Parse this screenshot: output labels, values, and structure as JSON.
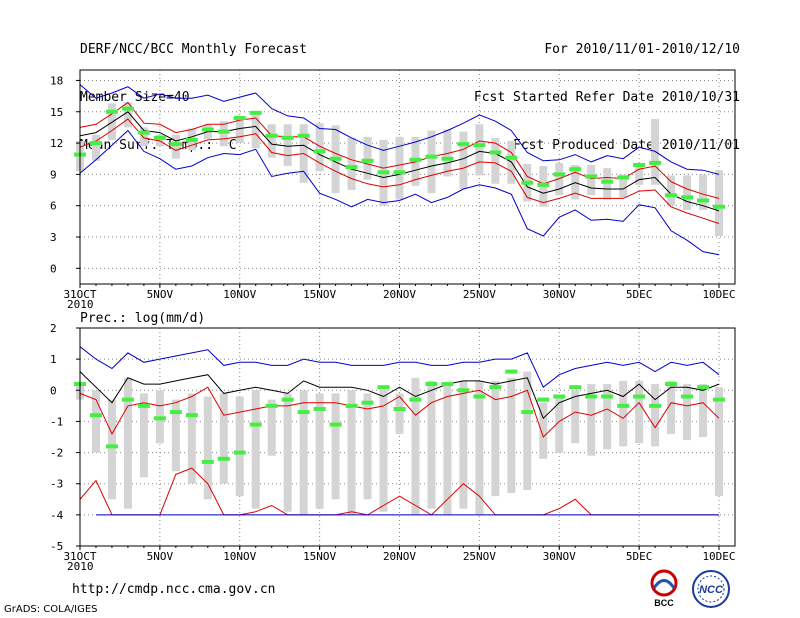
{
  "header": {
    "title": "DERF/NCC/BCC Monthly Forecast",
    "member_size": "Member Size=40",
    "variable1": "Mean Surf. Temp.: °C",
    "period": "For 2010/11/01-2010/12/10",
    "started": "Fcst Started Refer Date 2010/10/31",
    "produced": "Fcst Produced Date 2010/11/01"
  },
  "footer": {
    "url": "http://cmdp.ncc.cma.gov.cn",
    "credit": "GrADS: COLA/IGES",
    "logo_bcc": "BCC",
    "logo_ncc": "NCC"
  },
  "colors": {
    "max": "#0000cc",
    "min": "#0000cc",
    "mean": "#000000",
    "spread": "#dd0000",
    "box": "#d4d4d4",
    "median": "#44ee44",
    "grid": "#888888"
  },
  "chart_data": [
    {
      "type": "box",
      "title": "Mean Surf. Temp.: °C",
      "ylim": [
        -1.5,
        19
      ],
      "yticks": [
        0,
        3,
        6,
        9,
        12,
        15,
        18
      ],
      "x": [
        0,
        1,
        2,
        3,
        4,
        5,
        6,
        7,
        8,
        9,
        10,
        11,
        12,
        13,
        14,
        15,
        16,
        17,
        18,
        19,
        20,
        21,
        22,
        23,
        24,
        25,
        26,
        27,
        28,
        29,
        30,
        31,
        32,
        33,
        34,
        35,
        36,
        37,
        38,
        39,
        40
      ],
      "xtick_labels": [
        "31OCT\n2010",
        "5NOV",
        "10NOV",
        "15NOV",
        "20NOV",
        "25NOV",
        "30NOV",
        "5DEC",
        "10DEC"
      ],
      "xtick_positions": [
        0,
        5,
        10,
        15,
        20,
        25,
        30,
        35,
        40
      ],
      "series": [
        {
          "name": "max",
          "values": [
            17.6,
            16.3,
            16.8,
            17.4,
            16.3,
            16.7,
            16.3,
            16.3,
            16.6,
            16.0,
            16.4,
            16.8,
            15.3,
            14.6,
            14.4,
            13.4,
            13.3,
            12.5,
            11.8,
            11.3,
            11.7,
            12.1,
            12.6,
            13.2,
            13.9,
            14.7,
            14.1,
            13.2,
            11.1,
            10.3,
            10.4,
            10.9,
            10.2,
            10.8,
            10.5,
            11.6,
            11.2,
            10.2,
            9.5,
            9.4,
            9.0
          ]
        },
        {
          "name": "spread_upper",
          "values": [
            13.5,
            13.8,
            14.8,
            15.9,
            13.9,
            13.8,
            13.0,
            13.3,
            13.8,
            13.8,
            14.2,
            14.4,
            12.7,
            12.6,
            12.6,
            11.7,
            11.0,
            10.4,
            10.0,
            9.6,
            9.9,
            10.2,
            10.7,
            11.0,
            11.4,
            12.2,
            12.0,
            11.1,
            8.8,
            8.1,
            8.6,
            9.2,
            8.6,
            8.7,
            8.6,
            9.5,
            9.8,
            8.3,
            7.6,
            7.1,
            6.7
          ]
        },
        {
          "name": "mean",
          "values": [
            12.7,
            13.0,
            14.0,
            15.0,
            13.2,
            13.0,
            12.2,
            12.6,
            13.1,
            13.1,
            13.4,
            13.6,
            11.9,
            11.7,
            11.8,
            10.9,
            10.2,
            9.5,
            9.1,
            8.7,
            9.0,
            9.4,
            9.8,
            10.1,
            10.5,
            11.2,
            11.0,
            10.2,
            7.8,
            7.2,
            7.6,
            8.2,
            7.7,
            7.6,
            7.6,
            8.5,
            8.7,
            7.1,
            6.4,
            6.0,
            5.5
          ]
        },
        {
          "name": "spread_lower",
          "values": [
            11.6,
            12.2,
            13.2,
            14.3,
            12.5,
            12.2,
            11.3,
            11.8,
            12.3,
            12.4,
            12.6,
            12.9,
            11.1,
            10.8,
            11.0,
            10.1,
            9.3,
            8.6,
            8.1,
            7.8,
            8.0,
            8.5,
            8.9,
            9.3,
            9.6,
            10.2,
            10.1,
            9.3,
            6.8,
            6.3,
            6.7,
            7.2,
            6.7,
            6.7,
            6.7,
            7.4,
            7.5,
            5.9,
            5.3,
            4.8,
            4.3
          ]
        },
        {
          "name": "min",
          "values": [
            9.1,
            10.4,
            11.8,
            13.2,
            11.2,
            10.5,
            9.5,
            9.8,
            10.6,
            11.0,
            10.9,
            11.4,
            8.8,
            9.1,
            9.3,
            7.2,
            6.6,
            5.9,
            6.6,
            6.3,
            6.5,
            7.1,
            6.3,
            6.8,
            7.6,
            8.0,
            7.7,
            7.1,
            3.8,
            3.1,
            4.9,
            5.6,
            4.6,
            4.7,
            4.5,
            6.1,
            5.8,
            3.6,
            2.7,
            1.6,
            1.3
          ]
        },
        {
          "name": "box_top",
          "values": [
            12.2,
            12.8,
            15.8,
            15.9,
            13.5,
            12.8,
            12.8,
            13.4,
            13.8,
            14.1,
            14.3,
            15.0,
            13.8,
            13.8,
            13.8,
            13.9,
            13.7,
            12.5,
            12.6,
            12.3,
            12.6,
            12.6,
            13.2,
            13.3,
            13.1,
            13.8,
            12.5,
            12.2,
            10.0,
            9.8,
            10.1,
            9.9,
            9.9,
            9.6,
            9.0,
            10.0,
            14.3,
            8.9,
            8.9,
            9.0,
            9.4
          ]
        },
        {
          "name": "box_bottom",
          "values": [
            9.3,
            10.3,
            12.3,
            13.5,
            11.7,
            11.7,
            10.5,
            11.3,
            12.4,
            11.7,
            12.0,
            11.5,
            10.6,
            9.8,
            8.2,
            9.3,
            7.2,
            7.5,
            8.5,
            6.0,
            6.6,
            7.9,
            7.2,
            8.8,
            7.6,
            8.9,
            8.1,
            8.1,
            6.4,
            5.9,
            7.0,
            6.6,
            7.0,
            6.6,
            6.8,
            8.0,
            8.0,
            6.0,
            5.6,
            5.6,
            3.1
          ]
        },
        {
          "name": "median",
          "values": [
            10.9,
            12.0,
            15.0,
            15.3,
            13.0,
            12.5,
            11.9,
            12.3,
            13.3,
            13.1,
            14.4,
            14.9,
            12.7,
            12.5,
            12.7,
            11.2,
            10.5,
            9.7,
            10.3,
            9.2,
            9.2,
            10.4,
            10.7,
            10.5,
            11.9,
            11.8,
            11.1,
            10.6,
            8.2,
            8.0,
            9.0,
            9.5,
            8.8,
            8.3,
            8.7,
            9.9,
            10.1,
            7.0,
            6.8,
            6.5,
            5.9
          ]
        }
      ]
    },
    {
      "type": "box",
      "title": "Prec.: log(mm/d)",
      "ylim": [
        -5,
        2
      ],
      "yticks": [
        -5,
        -4,
        -3,
        -2,
        -1,
        0,
        1,
        2
      ],
      "x": [
        0,
        1,
        2,
        3,
        4,
        5,
        6,
        7,
        8,
        9,
        10,
        11,
        12,
        13,
        14,
        15,
        16,
        17,
        18,
        19,
        20,
        21,
        22,
        23,
        24,
        25,
        26,
        27,
        28,
        29,
        30,
        31,
        32,
        33,
        34,
        35,
        36,
        37,
        38,
        39,
        40
      ],
      "xtick_labels": [
        "31OCT\n2010",
        "5NOV",
        "10NOV",
        "15NOV",
        "20NOV",
        "25NOV",
        "30NOV",
        "5DEC",
        "10DEC"
      ],
      "xtick_positions": [
        0,
        5,
        10,
        15,
        20,
        25,
        30,
        35,
        40
      ],
      "series": [
        {
          "name": "max",
          "values": [
            1.4,
            1.0,
            0.7,
            1.2,
            0.9,
            1.0,
            1.1,
            1.2,
            1.3,
            0.8,
            0.9,
            0.9,
            0.8,
            0.8,
            1.0,
            0.9,
            0.9,
            0.8,
            0.8,
            0.8,
            0.9,
            0.9,
            0.8,
            0.8,
            0.9,
            0.9,
            1.0,
            1.0,
            1.2,
            0.1,
            0.5,
            0.7,
            0.8,
            0.9,
            0.8,
            0.9,
            0.6,
            0.9,
            0.8,
            0.9,
            0.5
          ]
        },
        {
          "name": "mean",
          "values": [
            0.6,
            0.1,
            -0.4,
            0.4,
            0.2,
            0.2,
            0.3,
            0.4,
            0.5,
            -0.1,
            0.0,
            0.1,
            0.0,
            -0.1,
            0.3,
            0.1,
            0.1,
            0.1,
            0.0,
            -0.2,
            0.1,
            -0.2,
            0.0,
            0.2,
            0.3,
            0.3,
            0.2,
            0.3,
            0.4,
            -0.9,
            -0.4,
            -0.2,
            -0.1,
            0.0,
            -0.2,
            0.2,
            -0.3,
            0.1,
            0.1,
            0.0,
            0.2
          ]
        },
        {
          "name": "spread_line",
          "values": [
            -0.1,
            -0.3,
            -1.4,
            -0.5,
            -0.4,
            -0.5,
            -0.4,
            -0.2,
            0.1,
            -0.8,
            -0.7,
            -0.6,
            -0.5,
            -0.5,
            -0.4,
            -0.4,
            -0.4,
            -0.5,
            -0.6,
            -0.5,
            -0.2,
            -0.8,
            -0.4,
            -0.2,
            -0.1,
            0.0,
            -0.3,
            -0.2,
            0.0,
            -1.5,
            -1.0,
            -0.7,
            -0.8,
            -0.6,
            -0.9,
            -0.4,
            -1.2,
            -0.4,
            -0.5,
            -0.4,
            -0.9
          ]
        },
        {
          "name": "min",
          "values": [
            -3.5,
            -2.9,
            -4.0,
            -4.0,
            -4.0,
            -4.0,
            -2.7,
            -2.5,
            -3.0,
            -4.0,
            -4.0,
            -3.9,
            -3.7,
            -4.0,
            -4.0,
            -4.0,
            -4.0,
            -3.9,
            -4.0,
            -3.7,
            -3.4,
            -3.7,
            -4.0,
            -3.5,
            -3.0,
            -3.4,
            -4.0,
            -4.0,
            -4.0,
            -4.0,
            -3.8,
            -3.5,
            -4.0,
            -4.0,
            -4.0,
            -4.0,
            -4.0,
            -4.0,
            -4.0,
            -4.0,
            -4.0
          ]
        },
        {
          "name": "box_top",
          "values": [
            0.2,
            0.0,
            -0.3,
            0.4,
            -0.1,
            0.0,
            -0.3,
            -0.1,
            -0.2,
            -0.1,
            -0.2,
            0.0,
            -0.3,
            -0.1,
            0.0,
            -0.1,
            -0.1,
            0.0,
            -0.1,
            0.0,
            -0.1,
            0.4,
            0.3,
            0.2,
            0.3,
            0.3,
            0.3,
            0.4,
            0.6,
            -0.4,
            -0.2,
            0.0,
            0.2,
            0.2,
            0.3,
            0.3,
            0.2,
            0.3,
            0.2,
            0.2,
            0.1
          ]
        },
        {
          "name": "box_bottom",
          "values": [
            -0.3,
            -2.0,
            -3.5,
            -3.8,
            -2.8,
            -1.7,
            -2.6,
            -3.0,
            -3.5,
            -3.0,
            -3.4,
            -3.8,
            -2.1,
            -3.9,
            -4.0,
            -3.8,
            -3.5,
            -4.0,
            -3.5,
            -3.9,
            -1.4,
            -4.0,
            -3.8,
            -4.0,
            -3.8,
            -4.0,
            -3.4,
            -3.3,
            -3.2,
            -2.2,
            -2.0,
            -1.7,
            -2.1,
            -1.9,
            -1.8,
            -1.7,
            -1.8,
            -1.4,
            -1.6,
            -1.5,
            -3.4
          ]
        },
        {
          "name": "median",
          "values": [
            0.2,
            -0.8,
            -1.8,
            -0.3,
            -0.5,
            -0.9,
            -0.7,
            -0.8,
            -2.3,
            -2.2,
            -2.0,
            -1.1,
            -0.5,
            -0.3,
            -0.7,
            -0.6,
            -1.1,
            -0.5,
            -0.4,
            0.1,
            -0.6,
            -0.3,
            0.2,
            0.2,
            0.0,
            -0.2,
            0.1,
            0.6,
            -0.7,
            -0.3,
            -0.2,
            0.1,
            -0.2,
            -0.2,
            -0.5,
            -0.2,
            -0.5,
            0.2,
            -0.2,
            0.1,
            -0.3
          ]
        }
      ]
    }
  ]
}
